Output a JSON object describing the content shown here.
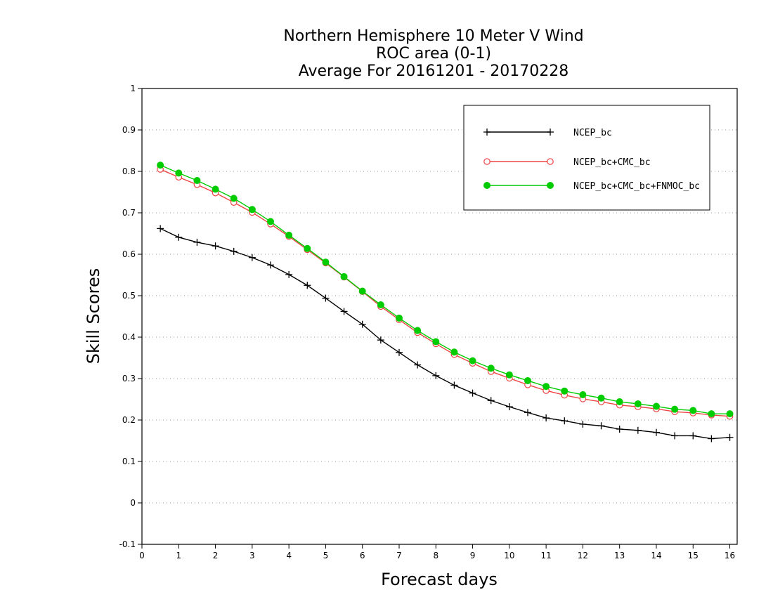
{
  "chart_data": {
    "type": "line",
    "title_lines": [
      "Northern Hemisphere 10 Meter V Wind",
      "ROC area (0-1)",
      "Average For 20161201 - 20170228"
    ],
    "xlabel": "Forecast days",
    "ylabel": "Skill Scores",
    "xlim": [
      0,
      16.2
    ],
    "ylim": [
      -0.1,
      1
    ],
    "xticks": [
      "0",
      "1",
      "2",
      "3",
      "4",
      "5",
      "6",
      "7",
      "8",
      "9",
      "10",
      "11",
      "12",
      "13",
      "14",
      "15",
      "16"
    ],
    "yticks": [
      "-0.1",
      "0",
      "0.1",
      "0.2",
      "0.3",
      "0.4",
      "0.5",
      "0.6",
      "0.7",
      "0.8",
      "0.9",
      "1"
    ],
    "grid": "horizontal-dotted",
    "legend_position": "top-right",
    "x": [
      0.5,
      1,
      1.5,
      2,
      2.5,
      3,
      3.5,
      4,
      4.5,
      5,
      5.5,
      6,
      6.5,
      7,
      7.5,
      8,
      8.5,
      9,
      9.5,
      10,
      10.5,
      11,
      11.5,
      12,
      12.5,
      13,
      13.5,
      14,
      14.5,
      15,
      15.5,
      16
    ],
    "series": [
      {
        "name": "NCEP_bc",
        "color": "#000000",
        "marker": "plus",
        "values": [
          0.662,
          0.641,
          0.629,
          0.62,
          0.607,
          0.592,
          0.574,
          0.551,
          0.525,
          0.494,
          0.462,
          0.431,
          0.393,
          0.363,
          0.333,
          0.307,
          0.284,
          0.265,
          0.247,
          0.232,
          0.218,
          0.205,
          0.198,
          0.19,
          0.186,
          0.178,
          0.175,
          0.17,
          0.162,
          0.162,
          0.155,
          0.158
        ]
      },
      {
        "name": "NCEP_bc+CMC_bc",
        "color": "#ee4444",
        "marker": "open-circle",
        "values": [
          0.805,
          0.786,
          0.768,
          0.748,
          0.725,
          0.701,
          0.673,
          0.643,
          0.611,
          0.579,
          0.545,
          0.51,
          0.474,
          0.442,
          0.411,
          0.384,
          0.358,
          0.337,
          0.317,
          0.301,
          0.285,
          0.271,
          0.26,
          0.251,
          0.244,
          0.236,
          0.232,
          0.227,
          0.22,
          0.217,
          0.212,
          0.209
        ]
      },
      {
        "name": "NCEP_bc+CMC_bc+FNMOC_bc",
        "color": "#00cc00",
        "marker": "filled-circle",
        "values": [
          0.815,
          0.796,
          0.778,
          0.757,
          0.735,
          0.708,
          0.679,
          0.646,
          0.614,
          0.581,
          0.546,
          0.511,
          0.478,
          0.446,
          0.416,
          0.389,
          0.364,
          0.343,
          0.325,
          0.309,
          0.295,
          0.281,
          0.27,
          0.261,
          0.253,
          0.244,
          0.239,
          0.233,
          0.226,
          0.223,
          0.215,
          0.215
        ]
      }
    ]
  }
}
